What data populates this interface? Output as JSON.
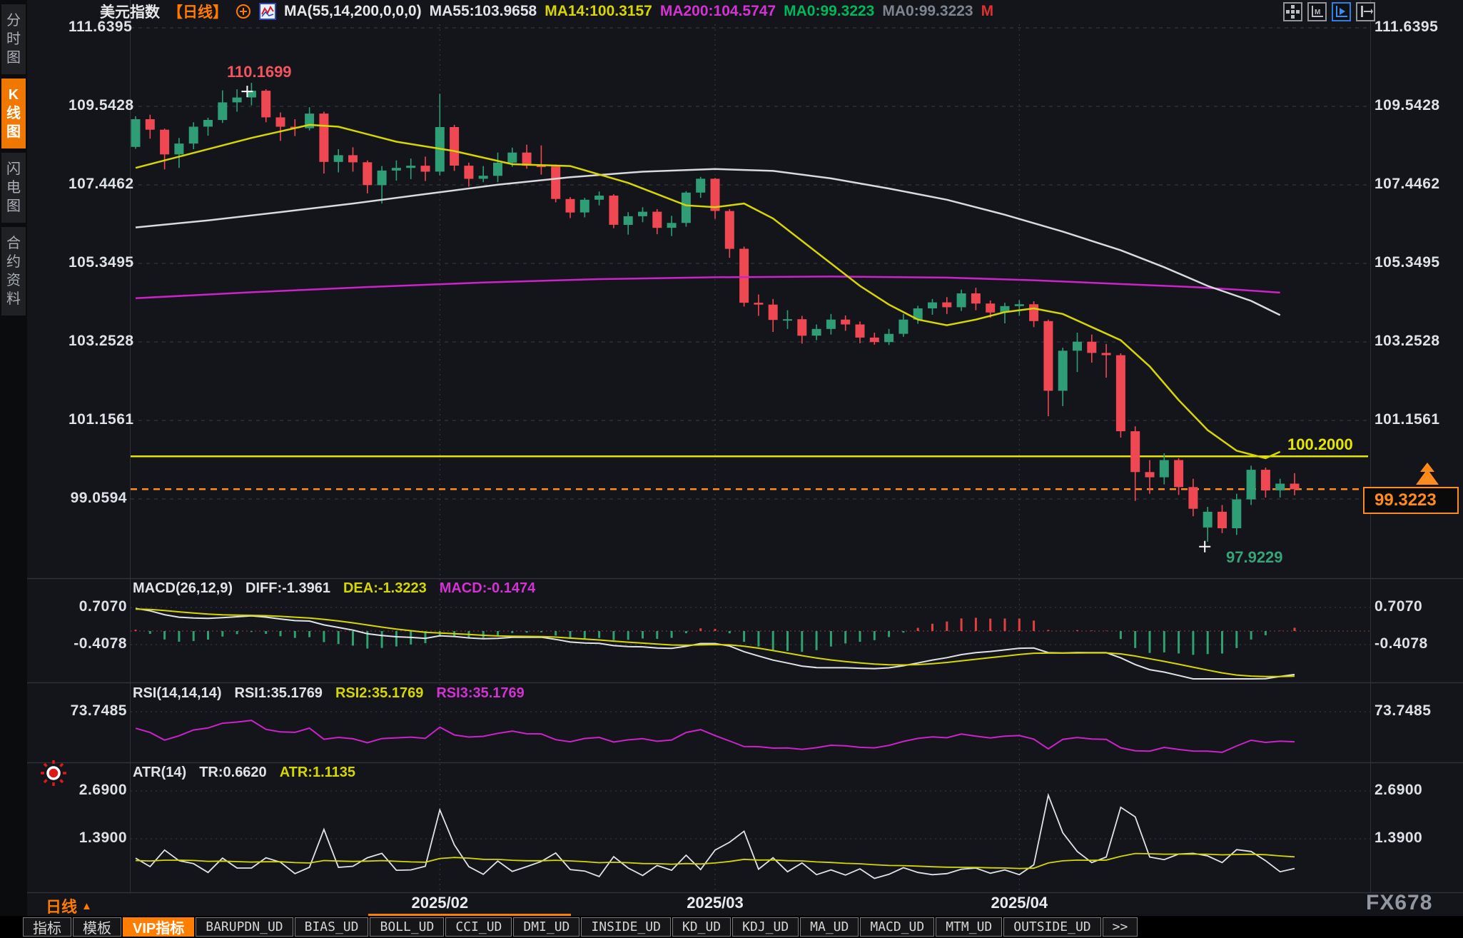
{
  "header": {
    "items": [
      {
        "name": "symbol-title",
        "text": "美元指数",
        "color": "#e8e8e8",
        "click": false
      },
      {
        "name": "period-tag",
        "text": "【日线】",
        "color": "#ff7a00",
        "click": true
      },
      {
        "name": "compare-icon",
        "icon": "circle-plus",
        "click": true
      },
      {
        "name": "chart-type-icon",
        "icon": "mini-chart",
        "click": true
      },
      {
        "name": "ma-settings",
        "text": "MA(55,14,200,0,0,0)",
        "color": "#e8e8e8",
        "click": false
      },
      {
        "name": "ma55-value",
        "text": "MA55:103.9658",
        "color": "#dfe3e8",
        "click": false
      },
      {
        "name": "ma14-value",
        "text": "MA14:100.3157",
        "color": "#d6d600",
        "click": false
      },
      {
        "name": "ma200-value",
        "text": "MA200:104.5747",
        "color": "#d233d2",
        "click": false
      },
      {
        "name": "ma0-green-value",
        "text": "MA0:99.3223",
        "color": "#00b85a",
        "click": false
      },
      {
        "name": "ma0-gray-value",
        "text": "MA0:99.3223",
        "color": "#7d8591",
        "click": false
      },
      {
        "name": "m-flag",
        "text": "M",
        "color": "#e03030",
        "click": false
      }
    ]
  },
  "toolbar": {
    "icons": [
      {
        "name": "pan-move-icon",
        "glyph": "pan",
        "active": false
      },
      {
        "name": "axis-marker-icon",
        "glyph": "axisM",
        "active": false
      },
      {
        "name": "axis-play-icon",
        "glyph": "axisPlay",
        "active": true
      },
      {
        "name": "axis-shift-icon",
        "glyph": "axisShift",
        "active": false
      }
    ]
  },
  "sidebar": {
    "items": [
      {
        "label": "分时图",
        "active": false
      },
      {
        "label": "K线图",
        "active": true
      },
      {
        "label": "闪电图",
        "active": false
      },
      {
        "label": "合约资料",
        "active": false
      }
    ]
  },
  "chart_data": {
    "type": "candlestick",
    "symbol": "美元指数",
    "interval": "日线",
    "y_axis_labels": [
      "111.6395",
      "109.5428",
      "107.4462",
      "105.3495",
      "103.2528",
      "101.1561",
      "99.0594"
    ],
    "x_labels": [
      {
        "index": 21,
        "label": "2025/02"
      },
      {
        "index": 40,
        "label": "2025/03"
      },
      {
        "index": 61,
        "label": "2025/04"
      }
    ],
    "candles": [
      [
        108.46,
        109.28,
        108.41,
        109.2
      ],
      [
        109.2,
        109.32,
        108.68,
        108.92
      ],
      [
        108.92,
        108.95,
        107.86,
        108.26
      ],
      [
        108.26,
        108.7,
        107.9,
        108.55
      ],
      [
        108.55,
        109.12,
        108.4,
        109.0
      ],
      [
        109.0,
        109.24,
        108.76,
        109.18
      ],
      [
        109.18,
        109.97,
        109.1,
        109.65
      ],
      [
        109.65,
        110.0,
        109.4,
        109.78
      ],
      [
        109.78,
        110.17,
        109.57,
        109.96
      ],
      [
        109.96,
        110.0,
        109.12,
        109.25
      ],
      [
        109.25,
        109.38,
        108.62,
        109.0
      ],
      [
        109.0,
        109.2,
        108.75,
        108.96
      ],
      [
        108.96,
        109.52,
        108.9,
        109.35
      ],
      [
        109.35,
        109.4,
        107.75,
        108.06
      ],
      [
        108.06,
        108.4,
        107.78,
        108.24
      ],
      [
        108.24,
        108.45,
        107.8,
        108.05
      ],
      [
        108.05,
        108.1,
        107.22,
        107.44
      ],
      [
        107.44,
        107.95,
        106.95,
        107.83
      ],
      [
        107.83,
        108.1,
        107.56,
        107.9
      ],
      [
        107.9,
        108.15,
        107.6,
        107.96
      ],
      [
        107.96,
        108.2,
        107.55,
        107.8
      ],
      [
        107.8,
        109.88,
        107.7,
        108.99
      ],
      [
        108.99,
        109.05,
        107.82,
        107.96
      ],
      [
        107.96,
        108.04,
        107.4,
        107.61
      ],
      [
        107.61,
        107.95,
        107.52,
        107.69
      ],
      [
        107.69,
        108.31,
        107.52,
        108.04
      ],
      [
        108.04,
        108.44,
        107.93,
        108.31
      ],
      [
        108.31,
        108.52,
        107.88,
        107.96
      ],
      [
        107.96,
        108.5,
        107.72,
        107.94
      ],
      [
        107.94,
        107.99,
        106.98,
        107.07
      ],
      [
        107.07,
        107.12,
        106.56,
        106.71
      ],
      [
        106.71,
        107.1,
        106.58,
        107.05
      ],
      [
        107.05,
        107.27,
        106.9,
        107.16
      ],
      [
        107.16,
        107.2,
        106.29,
        106.38
      ],
      [
        106.38,
        106.72,
        106.12,
        106.61
      ],
      [
        106.61,
        106.85,
        106.45,
        106.73
      ],
      [
        106.73,
        106.8,
        106.13,
        106.3
      ],
      [
        106.3,
        106.62,
        106.08,
        106.43
      ],
      [
        106.43,
        107.28,
        106.33,
        107.24
      ],
      [
        107.24,
        107.66,
        107.1,
        107.61
      ],
      [
        107.61,
        107.63,
        106.54,
        106.75
      ],
      [
        106.75,
        106.8,
        105.5,
        105.74
      ],
      [
        105.74,
        105.8,
        104.2,
        104.3
      ],
      [
        104.3,
        104.52,
        103.95,
        104.25
      ],
      [
        104.25,
        104.4,
        103.52,
        103.84
      ],
      [
        103.84,
        104.1,
        103.6,
        103.86
      ],
      [
        103.86,
        103.95,
        103.21,
        103.42
      ],
      [
        103.42,
        103.72,
        103.3,
        103.6
      ],
      [
        103.6,
        104.0,
        103.45,
        103.85
      ],
      [
        103.85,
        103.96,
        103.55,
        103.72
      ],
      [
        103.72,
        103.8,
        103.22,
        103.37
      ],
      [
        103.37,
        103.5,
        103.18,
        103.25
      ],
      [
        103.25,
        103.6,
        103.17,
        103.47
      ],
      [
        103.47,
        104.0,
        103.39,
        103.85
      ],
      [
        103.85,
        104.22,
        103.74,
        104.15
      ],
      [
        104.15,
        104.4,
        103.98,
        104.31
      ],
      [
        104.31,
        104.45,
        104.0,
        104.18
      ],
      [
        104.18,
        104.65,
        104.08,
        104.55
      ],
      [
        104.55,
        104.7,
        104.1,
        104.28
      ],
      [
        104.28,
        104.36,
        103.9,
        104.04
      ],
      [
        104.04,
        104.3,
        103.75,
        104.21
      ],
      [
        104.21,
        104.37,
        103.95,
        104.26
      ],
      [
        104.26,
        104.34,
        103.65,
        103.81
      ],
      [
        103.81,
        103.85,
        101.27,
        101.95
      ],
      [
        101.95,
        103.1,
        101.54,
        103.02
      ],
      [
        103.02,
        103.5,
        102.45,
        103.26
      ],
      [
        103.26,
        103.45,
        102.7,
        102.96
      ],
      [
        102.96,
        103.2,
        102.3,
        102.9
      ],
      [
        102.9,
        102.95,
        100.7,
        100.87
      ],
      [
        100.87,
        101.0,
        99.01,
        99.78
      ],
      [
        99.78,
        100.1,
        99.2,
        99.64
      ],
      [
        99.64,
        100.28,
        99.45,
        100.1
      ],
      [
        100.1,
        100.15,
        99.17,
        99.38
      ],
      [
        99.38,
        99.6,
        98.6,
        98.8
      ],
      [
        98.3,
        98.85,
        97.92,
        98.72
      ],
      [
        98.72,
        98.9,
        98.15,
        98.28
      ],
      [
        98.28,
        99.2,
        98.1,
        99.05
      ],
      [
        99.05,
        99.95,
        98.9,
        99.84
      ],
      [
        99.84,
        99.9,
        99.1,
        99.29
      ],
      [
        99.29,
        99.6,
        99.1,
        99.47
      ],
      [
        99.47,
        99.75,
        99.16,
        99.32
      ]
    ],
    "ma14_points": [
      [
        0,
        107.9
      ],
      [
        4,
        108.3
      ],
      [
        8,
        108.7
      ],
      [
        12,
        109.05
      ],
      [
        14,
        109.0
      ],
      [
        18,
        108.6
      ],
      [
        22,
        108.35
      ],
      [
        26,
        108.0
      ],
      [
        30,
        107.95
      ],
      [
        34,
        107.5
      ],
      [
        38,
        106.9
      ],
      [
        40,
        106.85
      ],
      [
        42,
        106.95
      ],
      [
        44,
        106.55
      ],
      [
        46,
        105.95
      ],
      [
        48,
        105.35
      ],
      [
        50,
        104.75
      ],
      [
        52,
        104.25
      ],
      [
        54,
        103.85
      ],
      [
        56,
        103.7
      ],
      [
        58,
        103.85
      ],
      [
        60,
        104.05
      ],
      [
        62,
        104.15
      ],
      [
        64,
        104.0
      ],
      [
        66,
        103.65
      ],
      [
        68,
        103.3
      ],
      [
        70,
        102.6
      ],
      [
        72,
        101.7
      ],
      [
        74,
        100.9
      ],
      [
        76,
        100.35
      ],
      [
        78,
        100.15
      ],
      [
        80,
        100.32
      ]
    ],
    "ma55_points": [
      [
        0,
        106.31
      ],
      [
        5,
        106.5
      ],
      [
        10,
        106.72
      ],
      [
        15,
        106.95
      ],
      [
        20,
        107.2
      ],
      [
        25,
        107.45
      ],
      [
        30,
        107.65
      ],
      [
        35,
        107.8
      ],
      [
        40,
        107.87
      ],
      [
        44,
        107.82
      ],
      [
        48,
        107.62
      ],
      [
        52,
        107.35
      ],
      [
        56,
        107.05
      ],
      [
        60,
        106.65
      ],
      [
        64,
        106.2
      ],
      [
        68,
        105.7
      ],
      [
        71,
        105.25
      ],
      [
        74,
        104.75
      ],
      [
        77,
        104.35
      ],
      [
        80,
        103.97
      ]
    ],
    "ma200_points": [
      [
        0,
        104.42
      ],
      [
        8,
        104.58
      ],
      [
        16,
        104.72
      ],
      [
        24,
        104.84
      ],
      [
        32,
        104.93
      ],
      [
        40,
        104.98
      ],
      [
        48,
        105.0
      ],
      [
        56,
        104.97
      ],
      [
        62,
        104.9
      ],
      [
        68,
        104.8
      ],
      [
        73,
        104.72
      ],
      [
        76,
        104.65
      ],
      [
        80,
        104.57
      ]
    ],
    "hlines": [
      {
        "value": 100.2,
        "label": "100.2000",
        "color": "#e6e600",
        "style": "solid"
      },
      {
        "value": 99.3223,
        "label": "99.3223",
        "color": "#ff8a1e",
        "style": "dashed"
      }
    ],
    "annotations": {
      "high": {
        "index": 8,
        "price": 110.1699,
        "label": "110.1699",
        "color": "#f2555f"
      },
      "low": {
        "index": 74,
        "price": 97.9229,
        "label": "97.9229",
        "color": "#37a377"
      }
    },
    "macd": {
      "title": "MACD(26,12,9)",
      "diff_label": "DIFF:-1.3961",
      "dea_label": "DEA:-1.3223",
      "macd_label": "MACD:-0.1474",
      "axis": [
        "0.7070",
        "-0.4078"
      ]
    },
    "rsi": {
      "title": "RSI(14,14,14)",
      "rsi1_label": "RSI1:35.1769",
      "rsi2_label": "RSI2:35.1769",
      "rsi3_label": "RSI3:35.1769",
      "axis": [
        "73.7485"
      ]
    },
    "atr": {
      "title": "ATR(14)",
      "tr_label": "TR:0.6620",
      "atr_label": "ATR:1.1135",
      "axis": [
        "2.6900",
        "1.3900"
      ]
    },
    "colors": {
      "up": "#2f9e77",
      "down": "#ef4852",
      "ma14": "#d6d600",
      "ma55": "#d8dadc",
      "ma200": "#cc22cc",
      "grid": "#3a3d42",
      "divider": "#2e3136",
      "accent_orange": "#ff7e00"
    }
  },
  "bottom": {
    "period": "日线",
    "watermark": "FX678",
    "active_tab": "VIP指标",
    "tabs": [
      "指标",
      "模板",
      "VIP指标",
      "BARUPDN_UD",
      "BIAS_UD",
      "BOLL_UD",
      "CCI_UD",
      "DMI_UD",
      "INSIDE_UD",
      "KD_UD",
      "KDJ_UD",
      "MA_UD",
      "MACD_UD",
      "MTM_UD",
      "OUTSIDE_UD",
      ">>"
    ]
  }
}
